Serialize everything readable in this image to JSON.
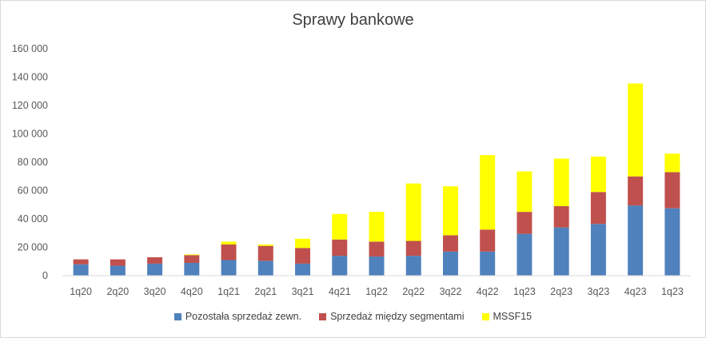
{
  "chart_data": {
    "type": "bar",
    "stacked": true,
    "title": "Sprawy bankowe",
    "xlabel": "",
    "ylabel": "",
    "ylim": [
      0,
      160000
    ],
    "yticks": [
      0,
      20000,
      40000,
      60000,
      80000,
      100000,
      120000,
      140000,
      160000
    ],
    "ytick_labels": [
      "0",
      "20 000",
      "40 000",
      "60 000",
      "80 000",
      "100 000",
      "120 000",
      "140 000",
      "160 000"
    ],
    "grid": false,
    "legend_position": "bottom",
    "categories": [
      "1q20",
      "2q20",
      "3q20",
      "4q20",
      "1q21",
      "2q21",
      "3q21",
      "4q21",
      "1q22",
      "2q22",
      "3q22",
      "4q22",
      "1q23",
      "2q23",
      "3q23",
      "4q23",
      "1q23"
    ],
    "series": [
      {
        "name": "Pozostała sprzedaż zewn.",
        "color": "#4f81bd",
        "values": [
          8000,
          7000,
          8500,
          9000,
          11000,
          10500,
          8500,
          14000,
          13500,
          14000,
          17000,
          17000,
          29500,
          34000,
          36500,
          49500,
          47500
        ]
      },
      {
        "name": "Sprzedaż między segmentami",
        "color": "#c0504d",
        "values": [
          3500,
          4500,
          4500,
          5500,
          11000,
          10500,
          11000,
          11500,
          10500,
          10500,
          11500,
          15500,
          15500,
          15000,
          22500,
          20500,
          25500
        ]
      },
      {
        "name": "MSSF15",
        "color": "#ffff00",
        "values": [
          0,
          0,
          0,
          500,
          2000,
          1000,
          6500,
          18000,
          21000,
          40500,
          34500,
          52500,
          28500,
          33500,
          25000,
          65500,
          13000
        ]
      }
    ]
  }
}
